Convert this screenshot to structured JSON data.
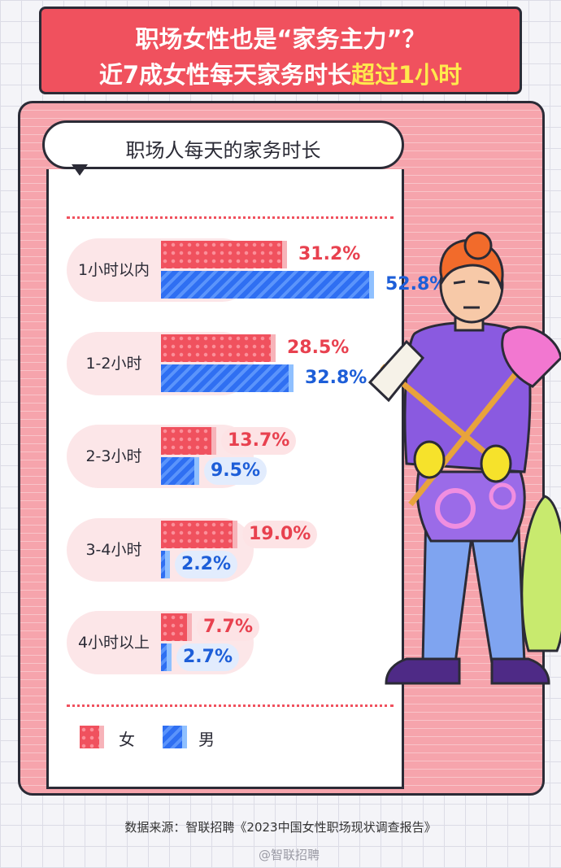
{
  "header": {
    "line1": "职场女性也是“家务主力”？",
    "line2_pre": "近7成女性每天家务时长",
    "line2_hl": "超过1小时"
  },
  "chart_title": "职场人每天的家务时长",
  "legend": {
    "female": "女",
    "male": "男"
  },
  "colors": {
    "female": "#f0515e",
    "male": "#2f6ff2",
    "banner": "#f0515e",
    "frame": "#f6a4ac"
  },
  "chart_data": {
    "type": "bar",
    "orientation": "horizontal",
    "categories": [
      "1小时以内",
      "1-2小时",
      "2-3小时",
      "3-4小时",
      "4小时以上"
    ],
    "series": [
      {
        "name": "女",
        "values": [
          31.2,
          28.5,
          13.7,
          19.0,
          7.7
        ],
        "labels": [
          "31.2%",
          "28.5%",
          "13.7%",
          "19.0%",
          "7.7%"
        ]
      },
      {
        "name": "男",
        "values": [
          52.8,
          32.8,
          9.5,
          2.2,
          2.7
        ],
        "labels": [
          "52.8%",
          "32.8%",
          "9.5%",
          "2.2%",
          "2.7%"
        ]
      }
    ],
    "unit": "%",
    "xlim": [
      0,
      52.8
    ],
    "legend_position": "bottom-left"
  },
  "source": "数据来源：智联招聘《2023中国女性职场现状调查报告》",
  "watermark": "@智联招聘"
}
